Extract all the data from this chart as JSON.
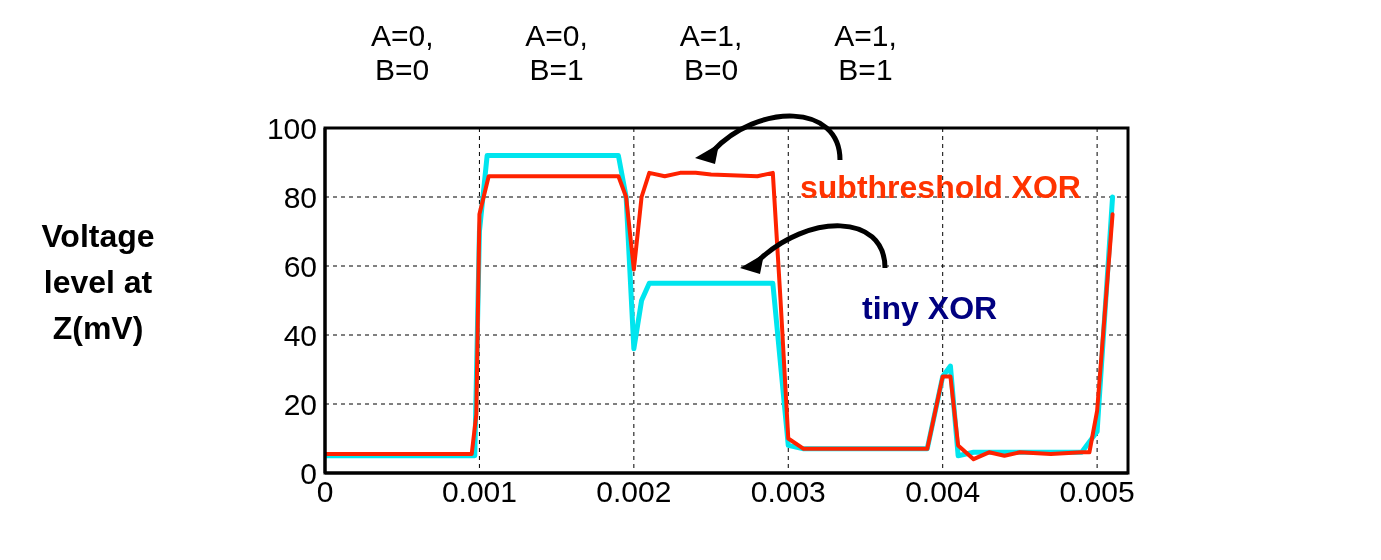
{
  "chart_data": {
    "type": "line",
    "ylabel": "Voltage level at Z(mV)",
    "annotations": [
      "A=0,\nB=0",
      "A=0,\nB=1",
      "A=1,\nB=0",
      "A=1,\nB=1",
      "subthreshold XOR",
      "tiny XOR"
    ],
    "series": [
      {
        "color": "#00e5ee",
        "x": [
          0,
          0.00097,
          0.001,
          0.00105,
          0.0019,
          0.00195,
          0.002,
          0.00205,
          0.0021,
          0.0029,
          0.003,
          0.0031,
          0.0039,
          0.004,
          0.00405,
          0.0041,
          0.0042,
          0.0049,
          0.005,
          0.0051
        ],
        "values": [
          5,
          5,
          70,
          92,
          92,
          80,
          36,
          50,
          55,
          55,
          8,
          7,
          7,
          28,
          31,
          5,
          6,
          6,
          12,
          80
        ]
      },
      {
        "color": "#ff2200",
        "x": [
          0,
          0.00095,
          0.00098,
          0.001,
          0.00106,
          0.0019,
          0.00195,
          0.002,
          0.00205,
          0.0021,
          0.0022,
          0.0023,
          0.0024,
          0.0025,
          0.0028,
          0.0029,
          0.00295,
          0.003,
          0.0031,
          0.0039,
          0.004,
          0.00405,
          0.0041,
          0.0042,
          0.0043,
          0.0044,
          0.0045,
          0.0047,
          0.0049,
          0.00495,
          0.005,
          0.0051
        ],
        "values": [
          5.5,
          5.5,
          17,
          75,
          86,
          86,
          80,
          59,
          80,
          87,
          86,
          87,
          87,
          86.5,
          86,
          87,
          50,
          10,
          7,
          7,
          28,
          28,
          8,
          4,
          6,
          5,
          6,
          5.5,
          6,
          6,
          18,
          75
        ]
      }
    ],
    "xlim": [
      0,
      0.0052
    ],
    "xticks": [
      0,
      0.001,
      0.002,
      0.003,
      0.004,
      0.005
    ],
    "ylim": [
      0,
      100
    ],
    "yticks": [
      0,
      20,
      40,
      60,
      80,
      100
    ],
    "grid": true,
    "marker": "none",
    "line_style": "solid"
  }
}
